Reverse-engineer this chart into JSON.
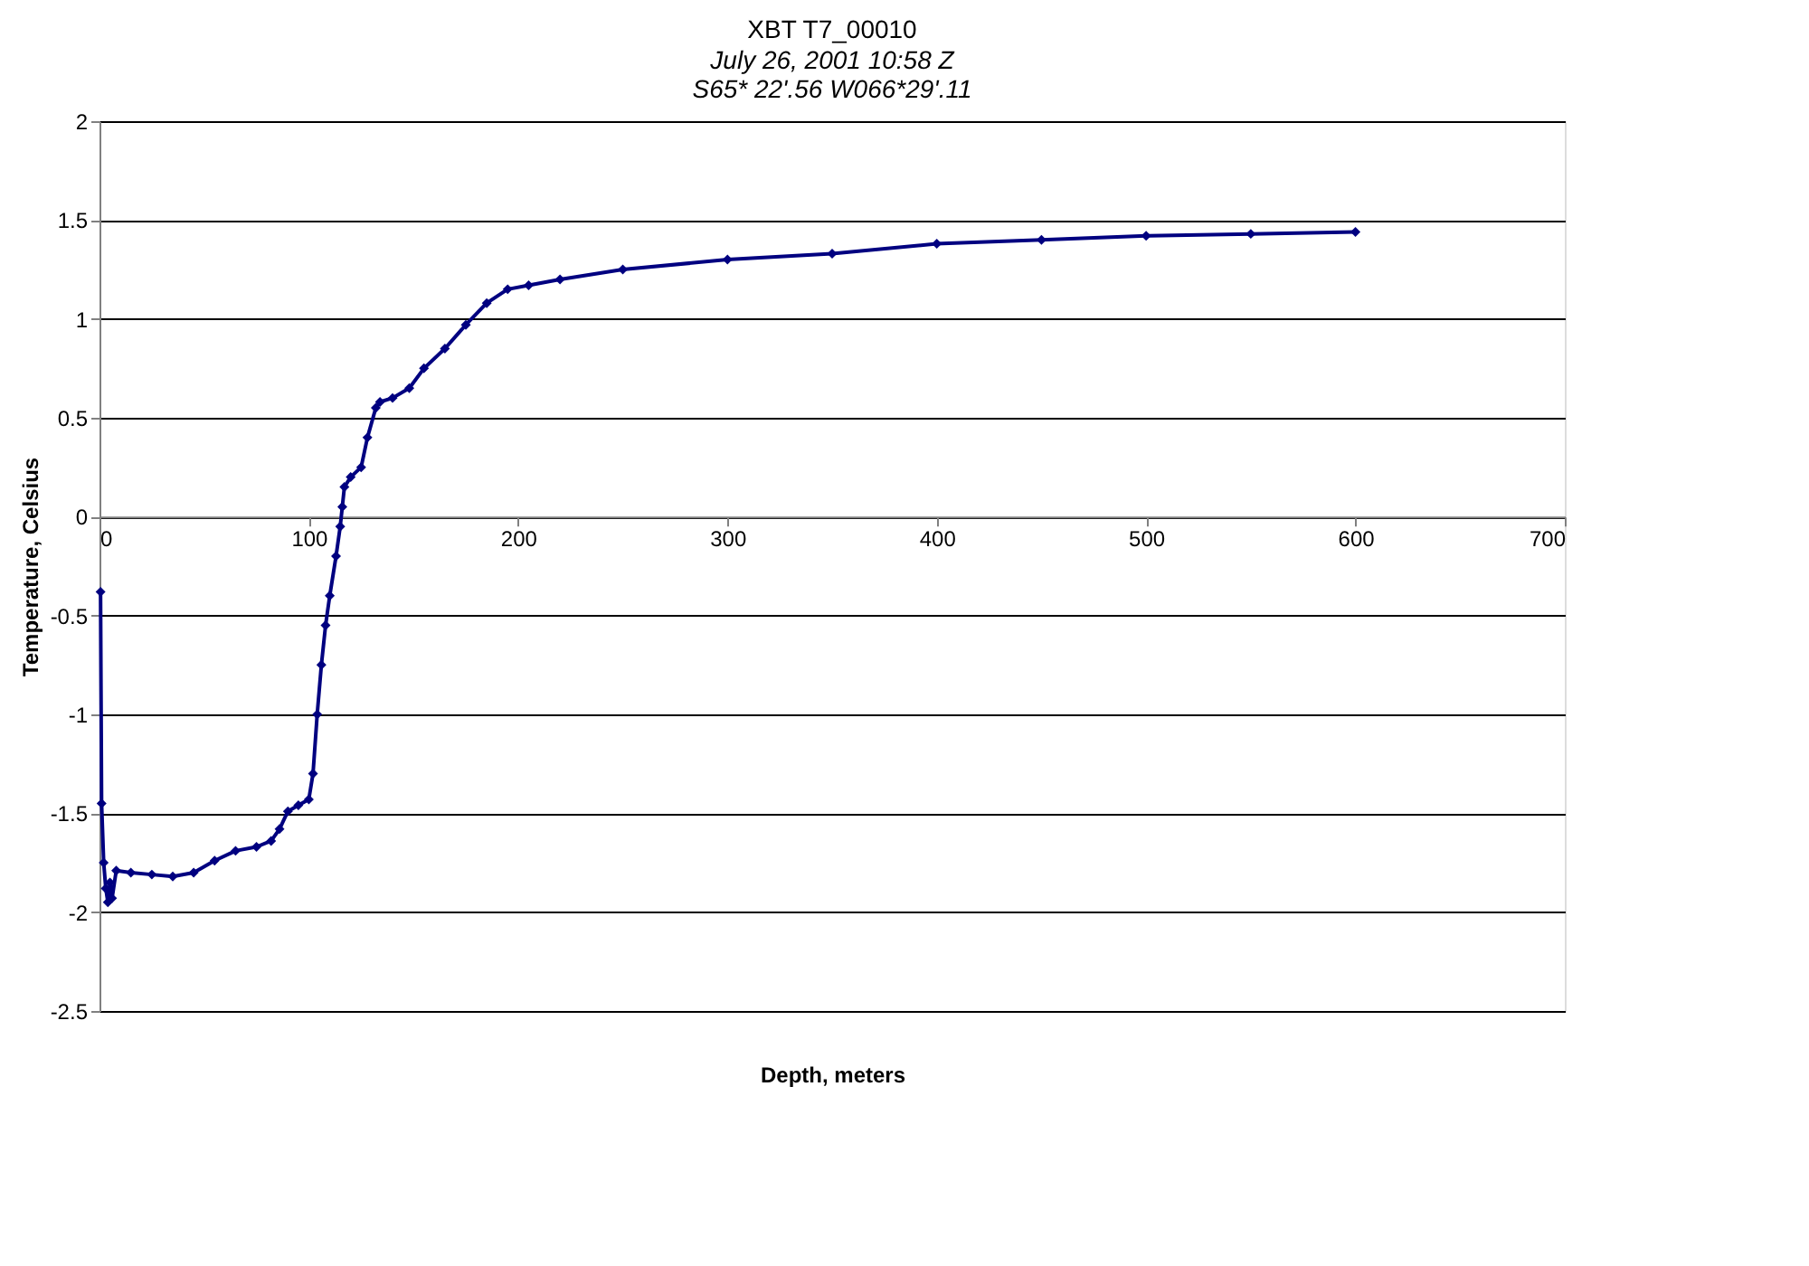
{
  "chart_data": {
    "type": "line",
    "title": "XBT T7_00010",
    "subtitle": "July 26, 2001  10:58 Z\nS65* 22'.56  W066*29'.11",
    "xlabel": "Depth, meters",
    "ylabel": "Temperature, Celsius",
    "x": [
      0.5,
      1,
      2,
      3,
      4,
      5,
      6,
      8,
      15,
      25,
      35,
      45,
      55,
      65,
      75,
      82,
      86,
      90,
      95,
      100,
      102,
      104,
      106,
      108,
      110,
      113,
      115,
      116,
      117,
      120,
      125,
      128,
      132,
      134,
      140,
      148,
      155,
      165,
      175,
      185,
      195,
      205,
      220,
      250,
      300,
      350,
      400,
      450,
      500,
      550,
      600
    ],
    "series": [
      {
        "color": "#000080",
        "values": [
          -0.38,
          -1.45,
          -1.75,
          -1.88,
          -1.95,
          -1.85,
          -1.93,
          -1.79,
          -1.8,
          -1.81,
          -1.82,
          -1.8,
          -1.74,
          -1.69,
          -1.67,
          -1.64,
          -1.58,
          -1.49,
          -1.46,
          -1.43,
          -1.3,
          -1.0,
          -0.75,
          -0.55,
          -0.4,
          -0.2,
          -0.05,
          0.05,
          0.15,
          0.2,
          0.25,
          0.4,
          0.55,
          0.58,
          0.6,
          0.65,
          0.75,
          0.85,
          0.97,
          1.08,
          1.15,
          1.17,
          1.2,
          1.25,
          1.3,
          1.33,
          1.38,
          1.4,
          1.42,
          1.43,
          1.44
        ]
      }
    ],
    "xlim": [
      0,
      700
    ],
    "xticks": [
      0,
      100,
      200,
      300,
      400,
      500,
      600,
      700
    ],
    "ylim": [
      -2.5,
      2
    ],
    "yticks": [
      -2.5,
      -2,
      -1.5,
      -1,
      -0.5,
      0,
      0.5,
      1,
      1.5,
      2
    ],
    "grid": "y",
    "marker": "diamond",
    "line_style": "solid"
  }
}
